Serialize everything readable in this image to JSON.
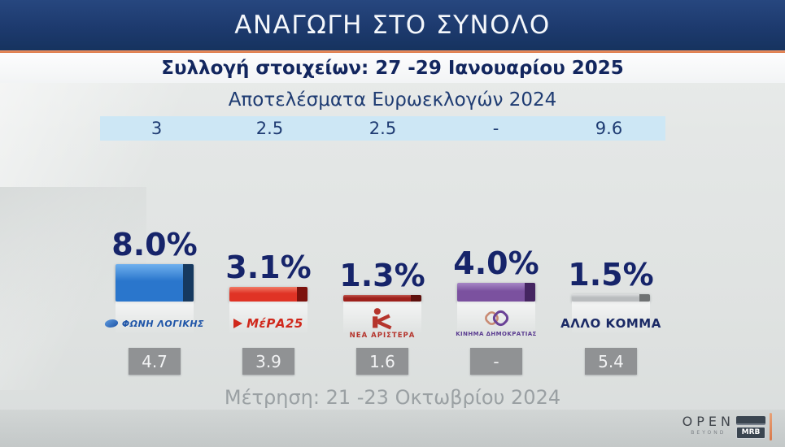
{
  "header": {
    "title": "ΑΝΑΓΩΓΗ ΣΤΟ ΣΥΝΟΛΟ",
    "collection_period": "Συλλογή στοιχείων: 27 -29 Ιανουαρίου 2025"
  },
  "euro_results": {
    "title": "Αποτελέσματα Ευρωεκλογών 2024",
    "values": [
      "3",
      "2.5",
      "2.5",
      "-",
      "9.6"
    ]
  },
  "parties": [
    {
      "name": "ΦΩΝΗ ΛΟΓΙΚΗΣ",
      "percent": 8.0,
      "percent_label": "8.0%",
      "euro_2024": "3",
      "previous": "4.7",
      "colors": {
        "face": "#2a76cc",
        "face_light": "#6fb0ee",
        "cap": "#16395f"
      },
      "logo": {
        "type": "foni-logikis",
        "text": "ΦΩΝΗ ΛΟΓΙΚΗΣ",
        "color": "#1f55a8"
      }
    },
    {
      "name": "ΜέΡΑ25",
      "percent": 3.1,
      "percent_label": "3.1%",
      "euro_2024": "2.5",
      "previous": "3.9",
      "colors": {
        "face": "#e03325",
        "face_light": "#f07a66",
        "cap": "#7c120d"
      },
      "logo": {
        "type": "mera25",
        "text": "ΜέΡΑ25",
        "color": "#d0281c"
      }
    },
    {
      "name": "ΝΕΑ ΑΡΙΣΤΕΡΑ",
      "percent": 1.3,
      "percent_label": "1.3%",
      "euro_2024": "2.5",
      "previous": "1.6",
      "colors": {
        "face": "#9e211c",
        "face_light": "#c05750",
        "cap": "#5e100d"
      },
      "logo": {
        "type": "nea-aristera",
        "text": "ΝΕΑ ΑΡΙΣΤΕΡΑ",
        "color": "#b5342c"
      }
    },
    {
      "name": "ΚΙΝΗΜΑ ΔΗΜΟΚΡΑΤΙΑΣ",
      "percent": 4.0,
      "percent_label": "4.0%",
      "euro_2024": "-",
      "previous": "-",
      "colors": {
        "face": "#7b519f",
        "face_light": "#a687c6",
        "cap": "#452561"
      },
      "logo": {
        "type": "kinima-dimokratias",
        "text": "ΚΙΝΗΜΑ ΔΗΜΟΚΡΑΤΙΑΣ",
        "color": "#5b3d91"
      }
    },
    {
      "name": "ΑΛΛΟ ΚΟΜΜΑ",
      "percent": 1.5,
      "percent_label": "1.5%",
      "euro_2024": "9.6",
      "previous": "5.4",
      "colors": {
        "face": "#b9bcbe",
        "face_light": "#dcdedf",
        "cap": "#6f7273"
      },
      "logo": {
        "type": "text-only",
        "text": "ΑΛΛΟ ΚΟΜΜΑ",
        "color": "#1b2a66"
      }
    }
  ],
  "previous_measurement": {
    "caption": "Μέτρηση: 21 -23 Οκτωβρίου 2024",
    "values": [
      "4.7",
      "3.9",
      "1.6",
      "-",
      "5.4"
    ]
  },
  "footer": {
    "open": "OPEN",
    "open_sub": "BEYOND",
    "mrb": "MRB"
  },
  "colors": {
    "banner_blue": "#1d3a6e",
    "accent_orange": "#d96b35",
    "euro_row_bg": "#cde7f5",
    "navy_text": "#16246a",
    "prev_box_bg": "#909294"
  },
  "chart_data": {
    "type": "bar",
    "title": "ΑΝΑΓΩΓΗ ΣΤΟ ΣΥΝΟΛΟ",
    "subtitle": "Συλλογή στοιχείων: 27 -29 Ιανουαρίου 2025",
    "categories": [
      "ΦΩΝΗ ΛΟΓΙΚΗΣ",
      "ΜέΡΑ25",
      "ΝΕΑ ΑΡΙΣΤΕΡΑ",
      "ΚΙΝΗΜΑ ΔΗΜΟΚΡΑΤΙΑΣ",
      "ΑΛΛΟ ΚΟΜΜΑ"
    ],
    "series": [
      {
        "name": "Αναγωγή στο σύνολο (27-29 Ιανουαρίου 2025)",
        "values": [
          8.0,
          3.1,
          1.3,
          4.0,
          1.5
        ],
        "labels": [
          "8.0%",
          "3.1%",
          "1.3%",
          "4.0%",
          "1.5%"
        ]
      },
      {
        "name": "Αποτελέσματα Ευρωεκλογών 2024",
        "values": [
          3,
          2.5,
          2.5,
          null,
          9.6
        ],
        "labels": [
          "3",
          "2.5",
          "2.5",
          "-",
          "9.6"
        ]
      },
      {
        "name": "Μέτρηση: 21 -23 Οκτωβρίου 2024",
        "values": [
          4.7,
          3.9,
          1.6,
          null,
          5.4
        ],
        "labels": [
          "4.7",
          "3.9",
          "1.6",
          "-",
          "5.4"
        ]
      }
    ],
    "bar_colors": [
      "#2a76cc",
      "#e03325",
      "#9e211c",
      "#7b519f",
      "#b9bcbe"
    ],
    "ylim": [
      0,
      10
    ],
    "grid": false,
    "legend_position": "none"
  }
}
